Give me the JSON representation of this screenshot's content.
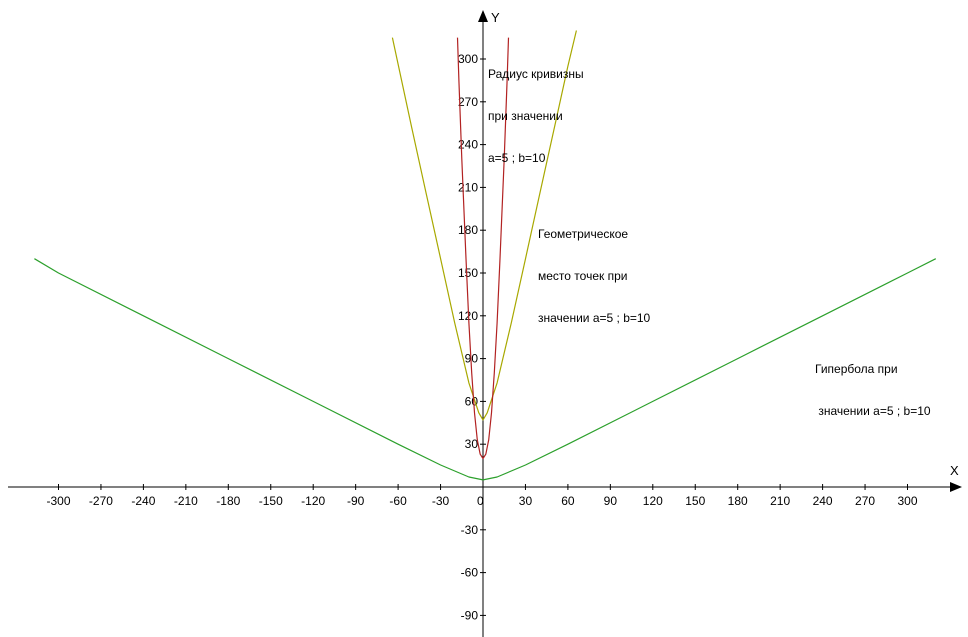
{
  "chart_data": {
    "type": "line",
    "axes": {
      "x_label": "X",
      "y_label": "Y",
      "xlim": [
        -330,
        330
      ],
      "ylim": [
        -100,
        320
      ],
      "x_ticks": [
        -300,
        -270,
        -240,
        -210,
        -180,
        -150,
        -120,
        -90,
        -60,
        -30,
        0,
        30,
        60,
        90,
        120,
        150,
        180,
        210,
        240,
        270,
        300
      ],
      "y_ticks": [
        -90,
        -60,
        -30,
        30,
        60,
        90,
        120,
        150,
        180,
        210,
        240,
        270,
        300
      ],
      "grid": false
    },
    "series": [
      {
        "name": "hyperbola",
        "color": "#2ca02c",
        "points": [
          [
            -317,
            160
          ],
          [
            -300,
            150
          ],
          [
            -240,
            120
          ],
          [
            -180,
            90
          ],
          [
            -120,
            60
          ],
          [
            -60,
            30
          ],
          [
            -30,
            15.4
          ],
          [
            -10,
            7
          ],
          [
            0,
            5
          ],
          [
            10,
            7
          ],
          [
            30,
            15.4
          ],
          [
            60,
            30
          ],
          [
            120,
            60
          ],
          [
            180,
            90
          ],
          [
            240,
            120
          ],
          [
            300,
            150
          ],
          [
            320,
            160
          ]
        ]
      },
      {
        "name": "locus",
        "color": "#a8a800",
        "points": [
          [
            -64,
            315
          ],
          [
            -50,
            250
          ],
          [
            -40,
            205
          ],
          [
            -30,
            160
          ],
          [
            -20,
            115
          ],
          [
            -10,
            73
          ],
          [
            -3,
            52
          ],
          [
            0,
            47
          ],
          [
            3,
            52
          ],
          [
            10,
            73
          ],
          [
            20,
            115
          ],
          [
            30,
            160
          ],
          [
            40,
            205
          ],
          [
            50,
            250
          ],
          [
            60,
            295
          ],
          [
            66,
            320
          ]
        ]
      },
      {
        "name": "curvature_radius",
        "color": "#b22222",
        "points": [
          [
            -18,
            315
          ],
          [
            -17,
            285
          ],
          [
            -15,
            230
          ],
          [
            -12,
            160
          ],
          [
            -10,
            115
          ],
          [
            -8,
            80
          ],
          [
            -6,
            52
          ],
          [
            -4,
            33
          ],
          [
            -2,
            23
          ],
          [
            0,
            20
          ],
          [
            2,
            23
          ],
          [
            4,
            33
          ],
          [
            6,
            52
          ],
          [
            8,
            80
          ],
          [
            10,
            115
          ],
          [
            12,
            160
          ],
          [
            15,
            230
          ],
          [
            17,
            285
          ],
          [
            18,
            315
          ]
        ]
      }
    ],
    "annotations": [
      {
        "id": "curvature",
        "lines": [
          "Радиус кривизны",
          "при значении",
          "a=5 ; b=10"
        ]
      },
      {
        "id": "locus",
        "lines": [
          "Геометрическое",
          "место точек при",
          "значении a=5 ; b=10"
        ]
      },
      {
        "id": "hyperbola",
        "lines": [
          "Гипербола при",
          " значении a=5 ; b=10"
        ]
      }
    ]
  }
}
